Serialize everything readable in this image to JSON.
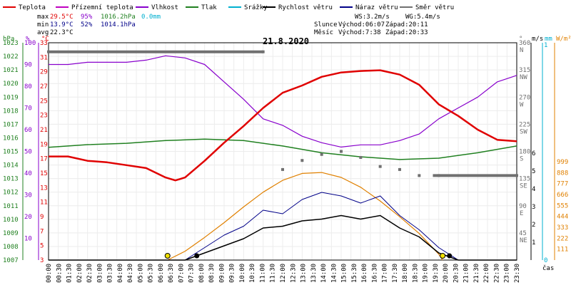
{
  "chart_data": {
    "type": "line",
    "title": "21.8.2020",
    "legend": [
      {
        "label": "Teplota",
        "color": "#e00000"
      },
      {
        "label": "Přízemní teplota",
        "color": "#c000c0"
      },
      {
        "label": "Vlhkost",
        "color": "#8800cc"
      },
      {
        "label": "Tlak",
        "color": "#208020"
      },
      {
        "label": "Srážky",
        "color": "#00b0d0"
      },
      {
        "label": "Rychlost větru",
        "color": "#000000"
      },
      {
        "label": "Náraz větru",
        "color": "#000088"
      },
      {
        "label": "Směr větru",
        "color": "#707070"
      }
    ],
    "stats": {
      "max_label": "max",
      "max_temp": "29.5°C",
      "max_hum": "95%",
      "max_press": "1016.2hPa",
      "max_rain": "0.0mm",
      "min_label": "min",
      "min_temp": "13.9°C",
      "min_hum": "52%",
      "min_press": "1014.1hPa",
      "avg_label": "avg",
      "avg_temp": "22.3°C",
      "ws": "WS:3.2m/s",
      "wg": "WG:5.4m/s",
      "sun_label": "Slunce",
      "sun_rise": "Východ:06:07",
      "sun_set": "Západ:20:11",
      "moon_label": "Měsíc",
      "moon_rise": "Východ:7:38",
      "moon_set": "Západ:20:33"
    },
    "axis_headers": {
      "hpa": "hPa",
      "pct": "%",
      "degc": "°C",
      "deg": "°",
      "ms": "m/s",
      "mm": "mm",
      "wm2": "W/m²"
    },
    "xlabel": "čas",
    "x_ticks": [
      "00:00",
      "00:30",
      "01:30",
      "02:00",
      "02:30",
      "03:00",
      "03:30",
      "04:00",
      "04:30",
      "05:00",
      "05:30",
      "06:00",
      "06:30",
      "07:00",
      "07:30",
      "08:00",
      "08:30",
      "09:00",
      "09:30",
      "10:00",
      "10:30",
      "11:00",
      "11:30",
      "12:00",
      "12:30",
      "13:00",
      "13:30",
      "14:00",
      "14:30",
      "15:00",
      "15:30",
      "16:00",
      "16:30",
      "17:00",
      "17:30",
      "18:00",
      "18:30",
      "19:00",
      "19:30",
      "20:00",
      "20:30",
      "21:00",
      "21:30",
      "22:00",
      "22:30",
      "23:00",
      "23:30"
    ],
    "y_pressure_ticks": [
      "1007",
      "1008",
      "1009",
      "1010",
      "1011",
      "1012",
      "1013",
      "1014",
      "1015",
      "1016",
      "1017",
      "1018",
      "1019",
      "1020",
      "1021",
      "1022",
      "1023"
    ],
    "y_humidity_ticks": [
      "10",
      "20",
      "30",
      "40",
      "50",
      "60",
      "70",
      "80",
      "90",
      "100"
    ],
    "y_temp_ticks": [
      "3",
      "5",
      "7",
      "9",
      "11",
      "13",
      "15",
      "17",
      "19",
      "21",
      "23",
      "25",
      "27",
      "29",
      "31",
      "33"
    ],
    "y_dir_ticks": [
      "0",
      "45",
      "90",
      "135",
      "180",
      "225",
      "270",
      "315",
      "360"
    ],
    "y_dir_names": [
      "NE",
      "E",
      "SE",
      "S",
      "SW",
      "W",
      "NW",
      "N"
    ],
    "y_wind_ticks": [
      "1",
      "2",
      "3",
      "4",
      "5",
      "6"
    ],
    "y_rain_ticks": [
      "0",
      "1"
    ],
    "y_solar_ticks": [
      "111",
      "222",
      "333",
      "444",
      "555",
      "666",
      "777",
      "888",
      "999"
    ],
    "series": [
      {
        "name": "Teplota",
        "unit": "°C",
        "x": [
          0,
          1,
          2,
          3,
          4,
          5,
          6,
          6.5,
          7,
          8,
          9,
          10,
          11,
          12,
          13,
          14,
          15,
          16,
          17,
          18,
          19,
          20,
          21,
          22,
          23,
          24
        ],
        "y": [
          17.3,
          17.3,
          16.7,
          16.5,
          16.1,
          15.7,
          14.4,
          14.0,
          14.4,
          16.7,
          19.2,
          21.5,
          24.0,
          26.1,
          27.1,
          28.3,
          28.9,
          29.1,
          29.2,
          28.6,
          27.2,
          24.5,
          22.9,
          21.0,
          19.6,
          19.4
        ]
      },
      {
        "name": "Vlhkost",
        "unit": "%",
        "x": [
          0,
          1,
          2,
          3,
          4,
          5,
          6,
          7,
          8,
          9,
          10,
          11,
          12,
          13,
          14,
          15,
          16,
          17,
          18,
          19,
          20,
          21,
          22,
          23,
          24
        ],
        "y": [
          90,
          90,
          91,
          91,
          91,
          92,
          94,
          93,
          90,
          82,
          74,
          65,
          62,
          57,
          54,
          52,
          53,
          53,
          55,
          58,
          65,
          70,
          75,
          82,
          85
        ]
      },
      {
        "name": "Tlak",
        "unit": "hPa",
        "x": [
          0,
          2,
          4,
          6,
          8,
          10,
          12,
          14,
          16,
          18,
          20,
          22,
          24
        ],
        "y": [
          1015.3,
          1015.5,
          1015.6,
          1015.8,
          1015.9,
          1015.8,
          1015.4,
          1014.9,
          1014.6,
          1014.4,
          1014.5,
          1014.9,
          1015.4
        ]
      },
      {
        "name": "Směr větru",
        "unit": "°",
        "x": [
          0,
          11.0,
          12,
          13,
          14,
          15,
          16,
          17,
          18,
          19,
          20,
          24
        ],
        "y": [
          345,
          345,
          150,
          165,
          175,
          180,
          170,
          155,
          150,
          140,
          140,
          140
        ]
      },
      {
        "name": "Rychlost větru",
        "unit": "m/s",
        "x": [
          0,
          7,
          8,
          9,
          10,
          11,
          12,
          13,
          14,
          15,
          16,
          17,
          18,
          19,
          20,
          21,
          24
        ],
        "y": [
          0,
          0,
          0.4,
          0.8,
          1.2,
          1.8,
          1.9,
          2.2,
          2.3,
          2.5,
          2.3,
          2.5,
          1.8,
          1.3,
          0.4,
          0,
          0
        ]
      },
      {
        "name": "Náraz větru",
        "unit": "m/s",
        "x": [
          0,
          7,
          8,
          9,
          10,
          11,
          12,
          13,
          14,
          15,
          16,
          17,
          18,
          19,
          20,
          21,
          24
        ],
        "y": [
          0,
          0,
          0.7,
          1.4,
          1.9,
          2.8,
          2.6,
          3.4,
          3.8,
          3.6,
          3.2,
          3.6,
          2.5,
          1.7,
          0.7,
          0,
          0
        ]
      },
      {
        "name": "Sluneční záření",
        "unit": "W/m²",
        "x": [
          6.1,
          7,
          8,
          9,
          10,
          11,
          12,
          13,
          14,
          15,
          16,
          17,
          18,
          19,
          20,
          20.2
        ],
        "y": [
          0,
          90,
          230,
          380,
          540,
          690,
          810,
          880,
          890,
          840,
          740,
          600,
          440,
          270,
          60,
          0
        ]
      }
    ]
  }
}
